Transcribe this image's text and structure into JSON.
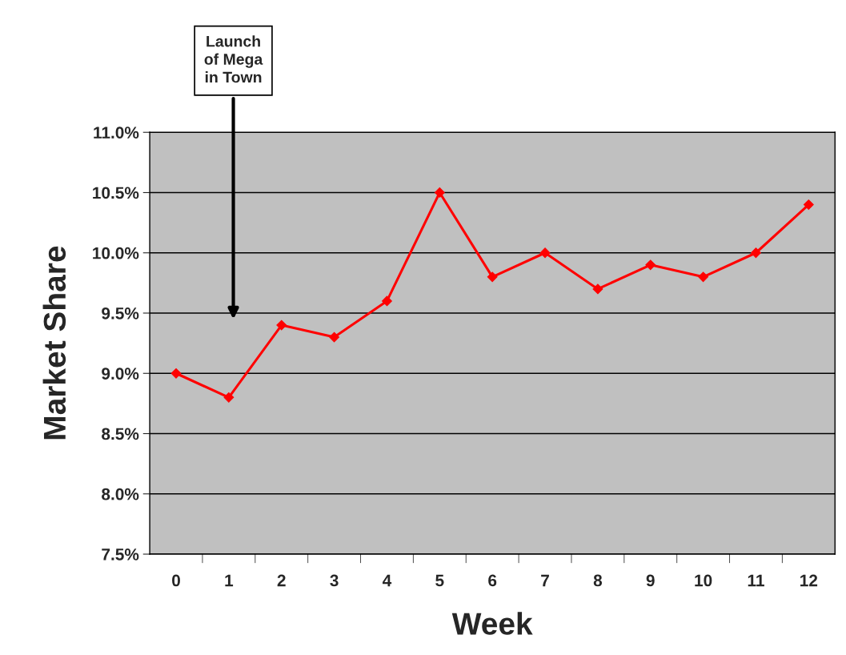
{
  "chart_data": {
    "type": "line",
    "xlabel": "Week",
    "ylabel": "Market Share",
    "categories": [
      "0",
      "1",
      "2",
      "3",
      "4",
      "5",
      "6",
      "7",
      "8",
      "9",
      "10",
      "11",
      "12"
    ],
    "series": [
      {
        "color": "#ff0000",
        "values": [
          9.0,
          8.8,
          9.4,
          9.3,
          9.6,
          10.5,
          9.8,
          10.0,
          9.7,
          9.9,
          9.8,
          10.0,
          10.4
        ]
      }
    ],
    "ylim": [
      7.5,
      11.0
    ],
    "yticks": [
      {
        "value": 7.5,
        "label": "7.5%"
      },
      {
        "value": 8.0,
        "label": "8.0%"
      },
      {
        "value": 8.5,
        "label": "8.5%"
      },
      {
        "value": 9.0,
        "label": "9.0%"
      },
      {
        "value": 9.5,
        "label": "9.5%"
      },
      {
        "value": 10.0,
        "label": "10.0%"
      },
      {
        "value": 10.5,
        "label": "10.5%"
      },
      {
        "value": 11.0,
        "label": "11.0%"
      }
    ],
    "grid": "y",
    "marker": "diamond",
    "line_style": "solid",
    "annotations": [
      "Launch\nof Mega\nin Town"
    ]
  }
}
